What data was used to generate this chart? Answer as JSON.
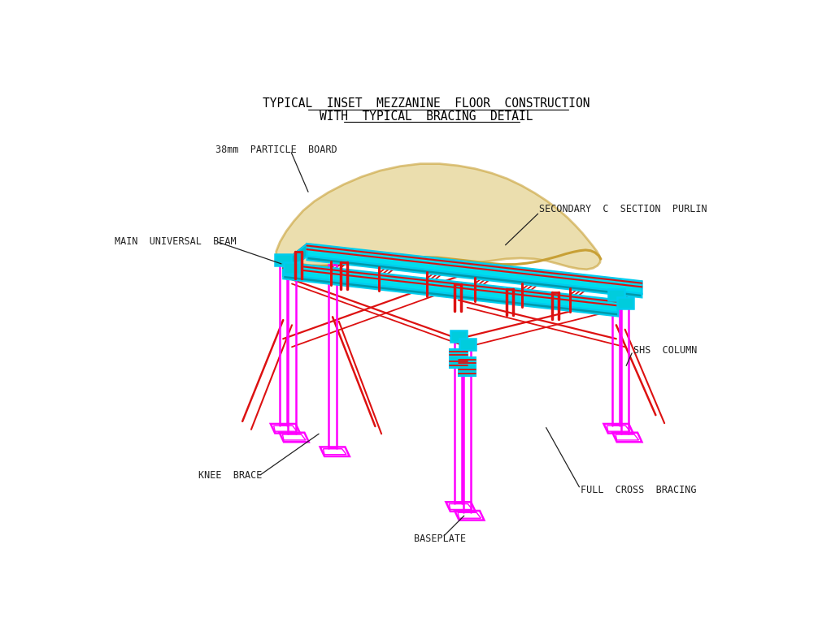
{
  "title_line1": "TYPICAL  INSET  MEZZANINE  FLOOR  CONSTRUCTION",
  "title_line2": "WITH  TYPICAL  BRACING  DETAIL",
  "bg_color": "#ffffff",
  "magenta": "#FF00FF",
  "red": "#DD1111",
  "cyan": "#00CCEE",
  "gold": "#C8A035",
  "label_color": "#222222",
  "labels": {
    "particle_board": "38mm  PARTICLE  BOARD",
    "main_beam": "MAIN  UNIVERSAL  BEAM",
    "secondary_purlin": "SECONDARY  C  SECTION  PURLIN",
    "shs_column": "SHS  COLUMN",
    "knee_brace": "KNEE  BRACE",
    "full_cross_bracing": "FULL  CROSS  BRACING",
    "baseplate": "BASEPLATE"
  }
}
